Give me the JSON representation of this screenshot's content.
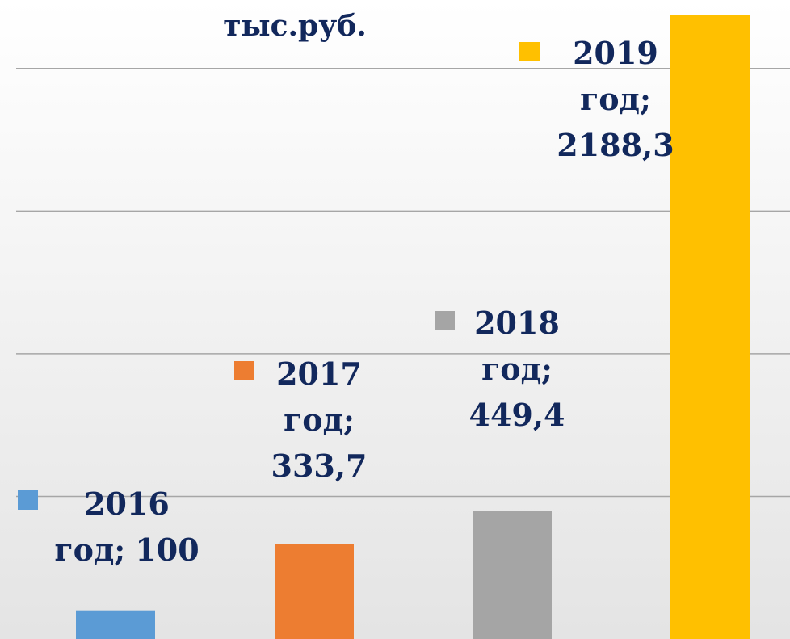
{
  "chart_data": {
    "type": "bar",
    "title": "тыс.руб.",
    "categories": [
      "2016 год",
      "2017 год",
      "2018 год",
      "2019 год"
    ],
    "separator": ";",
    "values": [
      100,
      333.7,
      449.4,
      2188.3
    ],
    "value_labels": [
      "100",
      "333,7",
      "449,4",
      "2188,3"
    ],
    "colors": [
      "#5b9bd5",
      "#ed7d31",
      "#a5a5a5",
      "#ffc000"
    ],
    "ylim": [
      0,
      2240
    ],
    "yticks": [
      500,
      1000,
      1500,
      2000
    ],
    "grid": true
  }
}
